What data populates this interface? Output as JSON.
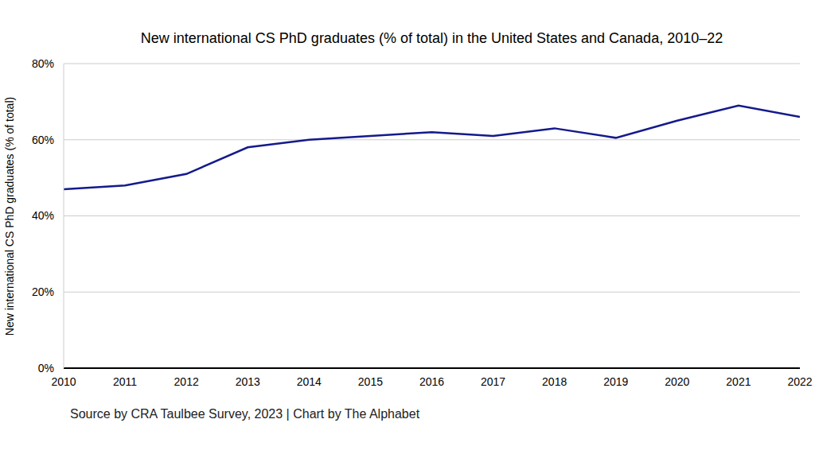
{
  "chart_data": {
    "type": "line",
    "title": "New international CS PhD graduates (% of total) in the United States and Canada, 2010–22",
    "y_label": "New international CS PhD graduates (% of total)",
    "source": "Source by CRA Taulbee Survey, 2023 | Chart by The Alphabet",
    "x": [
      2010,
      2011,
      2012,
      2013,
      2014,
      2015,
      2016,
      2017,
      2018,
      2019,
      2020,
      2021,
      2022
    ],
    "values": [
      47,
      48,
      51,
      58,
      60,
      61,
      62,
      61,
      63,
      60.5,
      65,
      69,
      66
    ],
    "color": "#141a8c",
    "xlim": [
      2010,
      2022
    ],
    "xticks": [
      2010,
      2011,
      2012,
      2013,
      2014,
      2015,
      2016,
      2017,
      2018,
      2019,
      2020,
      2021,
      2022
    ],
    "ylim": [
      0,
      80
    ],
    "yticks": [
      {
        "value": 0,
        "label": "0%"
      },
      {
        "value": 20,
        "label": "20%"
      },
      {
        "value": 40,
        "label": "40%"
      },
      {
        "value": 60,
        "label": "60%"
      },
      {
        "value": 80,
        "label": "80%"
      }
    ],
    "grid": true
  }
}
